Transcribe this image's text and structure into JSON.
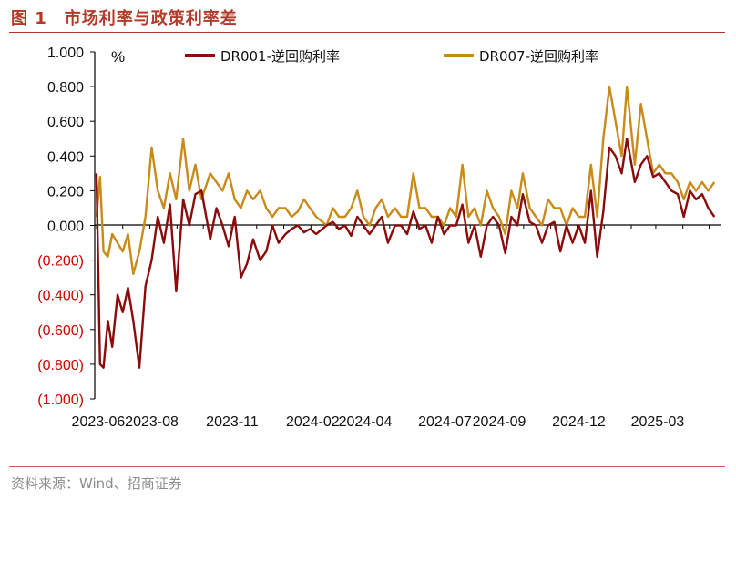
{
  "title": "图 1　市场利率与政策利率差",
  "source": "资料来源：Wind、招商证券",
  "colors": {
    "title": "#b23a2a",
    "negative_tick": "#d00000",
    "series_dr001": "#8b0a0a",
    "series_dr007": "#c98a1a"
  },
  "chart_data": {
    "type": "line",
    "unit": "%",
    "ylim": [
      -1.0,
      1.0
    ],
    "y_ticks": [
      "1.000",
      "0.800",
      "0.600",
      "0.400",
      "0.200",
      "0.000",
      "(0.200)",
      "(0.400)",
      "(0.600)",
      "(0.800)",
      "(1.000)"
    ],
    "x_ticks": [
      "2023-06",
      "2023-08",
      "2023-11",
      "2024-02",
      "2024-04",
      "2024-07",
      "2024-09",
      "2024-12",
      "2025-03"
    ],
    "legend": [
      "DR001-逆回购利率",
      "DR007-逆回购利率"
    ],
    "legend_position": "top",
    "grid": false,
    "series": [
      {
        "name": "DR001-逆回购利率",
        "x": [
          "2023-06-01",
          "2023-06-05",
          "2023-06-09",
          "2023-06-14",
          "2023-06-19",
          "2023-06-25",
          "2023-07-01",
          "2023-07-07",
          "2023-07-13",
          "2023-07-20",
          "2023-07-27",
          "2023-08-03",
          "2023-08-10",
          "2023-08-17",
          "2023-08-24",
          "2023-08-31",
          "2023-09-08",
          "2023-09-15",
          "2023-09-22",
          "2023-09-29",
          "2023-10-09",
          "2023-10-16",
          "2023-10-23",
          "2023-10-30",
          "2023-11-06",
          "2023-11-13",
          "2023-11-20",
          "2023-11-27",
          "2023-12-05",
          "2023-12-12",
          "2023-12-19",
          "2023-12-26",
          "2024-01-03",
          "2024-01-10",
          "2024-01-17",
          "2024-01-24",
          "2024-01-31",
          "2024-02-07",
          "2024-02-19",
          "2024-02-26",
          "2024-03-04",
          "2024-03-11",
          "2024-03-18",
          "2024-03-25",
          "2024-04-01",
          "2024-04-08",
          "2024-04-15",
          "2024-04-22",
          "2024-04-29",
          "2024-05-07",
          "2024-05-14",
          "2024-05-21",
          "2024-05-28",
          "2024-06-04",
          "2024-06-11",
          "2024-06-18",
          "2024-06-25",
          "2024-07-02",
          "2024-07-09",
          "2024-07-16",
          "2024-07-23",
          "2024-07-30",
          "2024-08-06",
          "2024-08-13",
          "2024-08-20",
          "2024-08-27",
          "2024-09-03",
          "2024-09-10",
          "2024-09-17",
          "2024-09-24",
          "2024-09-30",
          "2024-10-08",
          "2024-10-15",
          "2024-10-22",
          "2024-10-29",
          "2024-11-05",
          "2024-11-12",
          "2024-11-19",
          "2024-11-26",
          "2024-12-03",
          "2024-12-10",
          "2024-12-17",
          "2024-12-24",
          "2024-12-31",
          "2025-01-07",
          "2025-01-14",
          "2025-01-21",
          "2025-01-27",
          "2025-02-05",
          "2025-02-12",
          "2025-02-19",
          "2025-02-26",
          "2025-03-05",
          "2025-03-12",
          "2025-03-19",
          "2025-03-26",
          "2025-04-02",
          "2025-04-09",
          "2025-04-16",
          "2025-04-23",
          "2025-04-30",
          "2025-05-07"
        ],
        "values": [
          0.3,
          -0.8,
          -0.82,
          -0.55,
          -0.7,
          -0.4,
          -0.5,
          -0.36,
          -0.55,
          -0.82,
          -0.35,
          -0.2,
          0.05,
          -0.1,
          0.12,
          -0.38,
          0.15,
          0.0,
          0.18,
          0.2,
          -0.08,
          0.1,
          0.0,
          -0.12,
          0.05,
          -0.3,
          -0.22,
          -0.08,
          -0.2,
          -0.15,
          0.0,
          -0.1,
          -0.05,
          -0.02,
          0.0,
          -0.04,
          -0.02,
          -0.05,
          0.0,
          0.02,
          -0.02,
          0.0,
          -0.06,
          0.05,
          0.0,
          -0.05,
          0.0,
          0.05,
          -0.1,
          0.0,
          0.0,
          -0.05,
          0.08,
          -0.02,
          0.0,
          -0.1,
          0.05,
          -0.05,
          0.0,
          0.0,
          0.12,
          -0.1,
          0.0,
          -0.18,
          0.0,
          0.05,
          0.0,
          -0.16,
          0.05,
          0.0,
          0.18,
          0.02,
          0.0,
          -0.1,
          0.0,
          0.02,
          -0.15,
          0.0,
          -0.1,
          0.0,
          -0.1,
          0.2,
          -0.18,
          0.08,
          0.45,
          0.4,
          0.3,
          0.5,
          0.25,
          0.35,
          0.4,
          0.28,
          0.3,
          0.25,
          0.2,
          0.18,
          0.05,
          0.2,
          0.15,
          0.18,
          0.1,
          0.05
        ]
      },
      {
        "name": "DR007-逆回购利率",
        "x": [
          "2023-06-01",
          "2023-06-05",
          "2023-06-09",
          "2023-06-14",
          "2023-06-19",
          "2023-06-25",
          "2023-07-01",
          "2023-07-07",
          "2023-07-13",
          "2023-07-20",
          "2023-07-27",
          "2023-08-03",
          "2023-08-10",
          "2023-08-17",
          "2023-08-24",
          "2023-08-31",
          "2023-09-08",
          "2023-09-15",
          "2023-09-22",
          "2023-09-29",
          "2023-10-09",
          "2023-10-16",
          "2023-10-23",
          "2023-10-30",
          "2023-11-06",
          "2023-11-13",
          "2023-11-20",
          "2023-11-27",
          "2023-12-05",
          "2023-12-12",
          "2023-12-19",
          "2023-12-26",
          "2024-01-03",
          "2024-01-10",
          "2024-01-17",
          "2024-01-24",
          "2024-01-31",
          "2024-02-07",
          "2024-02-19",
          "2024-02-26",
          "2024-03-04",
          "2024-03-11",
          "2024-03-18",
          "2024-03-25",
          "2024-04-01",
          "2024-04-08",
          "2024-04-15",
          "2024-04-22",
          "2024-04-29",
          "2024-05-07",
          "2024-05-14",
          "2024-05-21",
          "2024-05-28",
          "2024-06-04",
          "2024-06-11",
          "2024-06-18",
          "2024-06-25",
          "2024-07-02",
          "2024-07-09",
          "2024-07-16",
          "2024-07-23",
          "2024-07-30",
          "2024-08-06",
          "2024-08-13",
          "2024-08-20",
          "2024-08-27",
          "2024-09-03",
          "2024-09-10",
          "2024-09-17",
          "2024-09-24",
          "2024-09-30",
          "2024-10-08",
          "2024-10-15",
          "2024-10-22",
          "2024-10-29",
          "2024-11-05",
          "2024-11-12",
          "2024-11-19",
          "2024-11-26",
          "2024-12-03",
          "2024-12-10",
          "2024-12-17",
          "2024-12-24",
          "2024-12-31",
          "2025-01-07",
          "2025-01-14",
          "2025-01-21",
          "2025-01-27",
          "2025-02-05",
          "2025-02-12",
          "2025-02-19",
          "2025-02-26",
          "2025-03-05",
          "2025-03-12",
          "2025-03-19",
          "2025-03-26",
          "2025-04-02",
          "2025-04-09",
          "2025-04-16",
          "2025-04-23",
          "2025-04-30",
          "2025-05-07"
        ],
        "values": [
          0.05,
          0.28,
          -0.15,
          -0.18,
          -0.05,
          -0.1,
          -0.15,
          -0.05,
          -0.28,
          -0.15,
          0.05,
          0.45,
          0.2,
          0.1,
          0.3,
          0.15,
          0.5,
          0.2,
          0.35,
          0.15,
          0.3,
          0.25,
          0.2,
          0.3,
          0.15,
          0.1,
          0.2,
          0.15,
          0.2,
          0.1,
          0.05,
          0.1,
          0.1,
          0.05,
          0.08,
          0.15,
          0.1,
          0.05,
          0.0,
          0.1,
          0.05,
          0.05,
          0.1,
          0.2,
          0.05,
          0.0,
          0.1,
          0.15,
          0.05,
          0.1,
          0.05,
          0.05,
          0.3,
          0.1,
          0.1,
          0.05,
          0.05,
          0.0,
          0.1,
          0.05,
          0.35,
          0.05,
          0.1,
          0.0,
          0.2,
          0.1,
          0.05,
          -0.05,
          0.2,
          0.1,
          0.3,
          0.1,
          0.05,
          0.0,
          0.15,
          0.1,
          0.1,
          0.0,
          0.1,
          0.05,
          0.05,
          0.35,
          0.05,
          0.5,
          0.8,
          0.6,
          0.4,
          0.8,
          0.35,
          0.7,
          0.5,
          0.3,
          0.35,
          0.3,
          0.3,
          0.25,
          0.15,
          0.25,
          0.2,
          0.25,
          0.2,
          0.25
        ]
      }
    ]
  }
}
